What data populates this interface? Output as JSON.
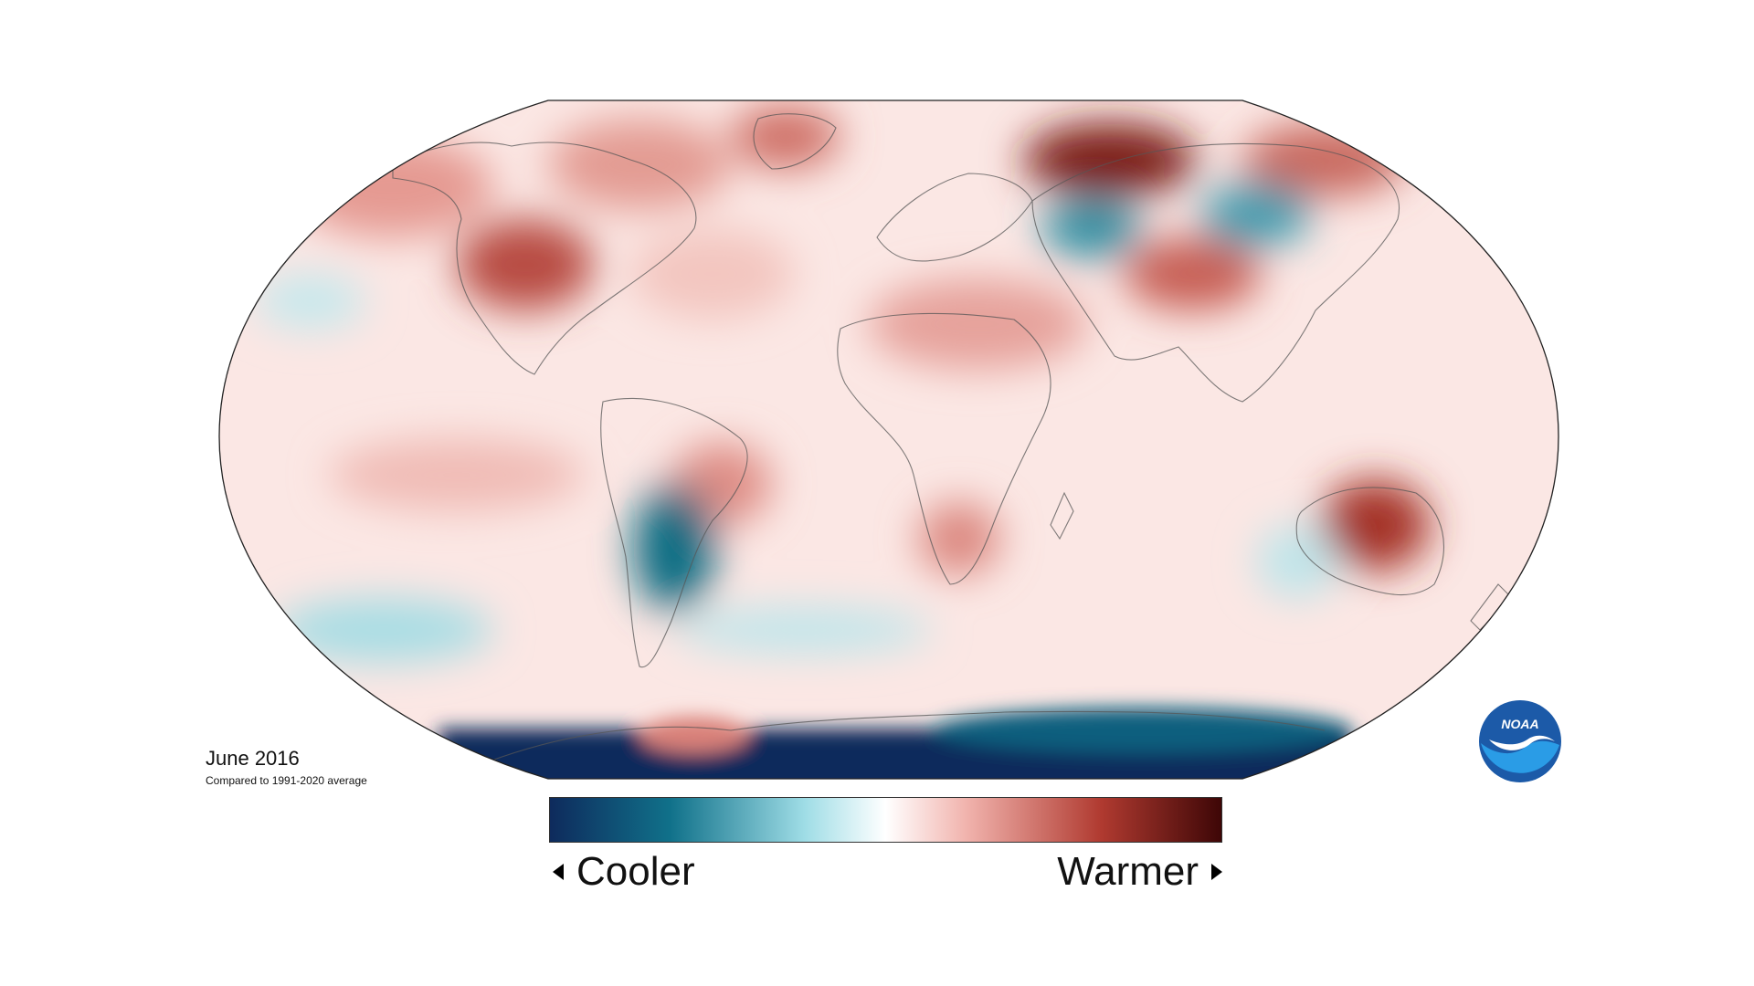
{
  "caption": {
    "title": "June 2016",
    "subtitle": "Compared to 1991-2020 average"
  },
  "legend": {
    "cooler_label": "Cooler",
    "warmer_label": "Warmer",
    "scale_colors": [
      "#0e2a5c",
      "#10718a",
      "#9fdde6",
      "#ffffff",
      "#f1b3ad",
      "#b03a30",
      "#3d0606"
    ]
  },
  "logo": {
    "text": "NOAA",
    "colors": {
      "outer": "#1c5aa8",
      "inner": "#2a9ce6",
      "bird": "#ffffff"
    }
  },
  "map": {
    "projection": "Robinson",
    "anomaly_regions": [
      {
        "region": "Northwestern North America",
        "anomaly": "warmer",
        "strength": 0.65
      },
      {
        "region": "Western United States",
        "anomaly": "warmer",
        "strength": 0.85
      },
      {
        "region": "Eastern Canada",
        "anomaly": "warmer",
        "strength": 0.55
      },
      {
        "region": "Greenland",
        "anomaly": "warmer",
        "strength": 0.6
      },
      {
        "region": "Northern Russia",
        "anomaly": "warmer",
        "strength": 1.0
      },
      {
        "region": "Central Siberia",
        "anomaly": "cooler",
        "strength": 0.6
      },
      {
        "region": "Kazakhstan",
        "anomaly": "cooler",
        "strength": 0.65
      },
      {
        "region": "Mongolia",
        "anomaly": "cooler",
        "strength": 0.6
      },
      {
        "region": "China",
        "anomaly": "warmer",
        "strength": 0.6
      },
      {
        "region": "North Africa",
        "anomaly": "warmer",
        "strength": 0.45
      },
      {
        "region": "Southern Africa",
        "anomaly": "warmer",
        "strength": 0.55
      },
      {
        "region": "Brazil",
        "anomaly": "warmer",
        "strength": 0.55
      },
      {
        "region": "Southern South America",
        "anomaly": "cooler",
        "strength": 0.9
      },
      {
        "region": "Central Australia",
        "anomaly": "warmer",
        "strength": 0.9
      },
      {
        "region": "Antarctica",
        "anomaly": "cooler",
        "strength": 1.0
      },
      {
        "region": "Antarctic Peninsula",
        "anomaly": "warmer",
        "strength": 0.65
      },
      {
        "region": "Eastern Pacific",
        "anomaly": "warmer",
        "strength": 0.35
      },
      {
        "region": "Southern Ocean",
        "anomaly": "cooler",
        "strength": 0.4
      }
    ]
  }
}
